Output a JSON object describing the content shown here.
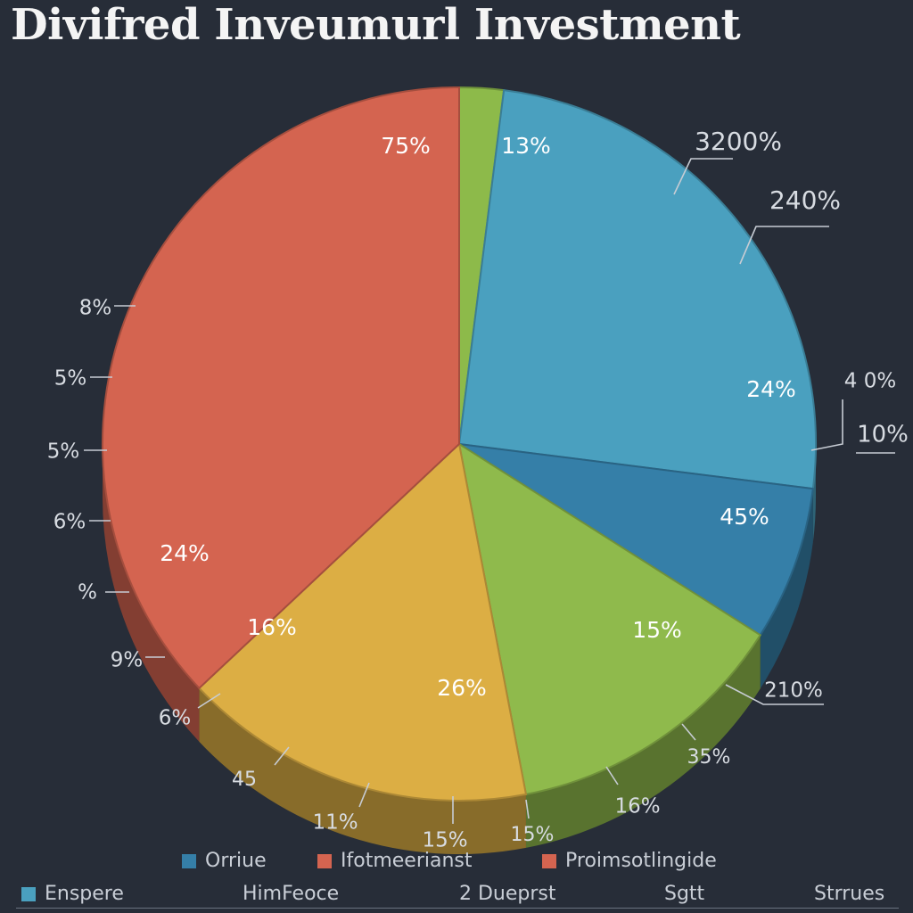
{
  "chart_data": {
    "type": "pie",
    "title": "Divifred Inveumurl Investment",
    "slices": [
      {
        "label": "13%",
        "value": 2,
        "color": "#8dba4a"
      },
      {
        "label": "24%",
        "value": 25,
        "color": "#4aa0bf"
      },
      {
        "label": "45%",
        "value": 7,
        "color": "#357fa8"
      },
      {
        "label": "15%",
        "value": 13,
        "color": "#8fba4c"
      },
      {
        "label": "26%",
        "value": 16,
        "color": "#dcae44"
      },
      {
        "label": "24%",
        "value": 37,
        "color": "#d46450"
      }
    ],
    "inner_labels": [
      "75%",
      "13%",
      "24%",
      "45%",
      "15%",
      "26%",
      "16%",
      "24%"
    ],
    "outer_labels": [
      "3200%",
      "240%",
      "4 0%",
      "10%",
      "210%",
      "35%",
      "16%",
      "15%",
      "15%",
      "11%",
      "45",
      "6%",
      "9%",
      "%",
      "6%",
      "5%",
      "5%",
      "8%"
    ],
    "legend": [
      {
        "label": "Orriue",
        "color": "#357fa8"
      },
      {
        "label": "Ifotmeerianst",
        "color": "#d46450"
      },
      {
        "label": "Proimsotlingide",
        "color": "#d46450"
      }
    ],
    "legend_bottom": [
      {
        "label": "Enspere",
        "color": "#4aa0bf"
      },
      {
        "label": "HimFeoce"
      },
      {
        "label": "2 Dueprst"
      },
      {
        "label": "Sgtt"
      },
      {
        "label": "Strrues"
      }
    ]
  }
}
